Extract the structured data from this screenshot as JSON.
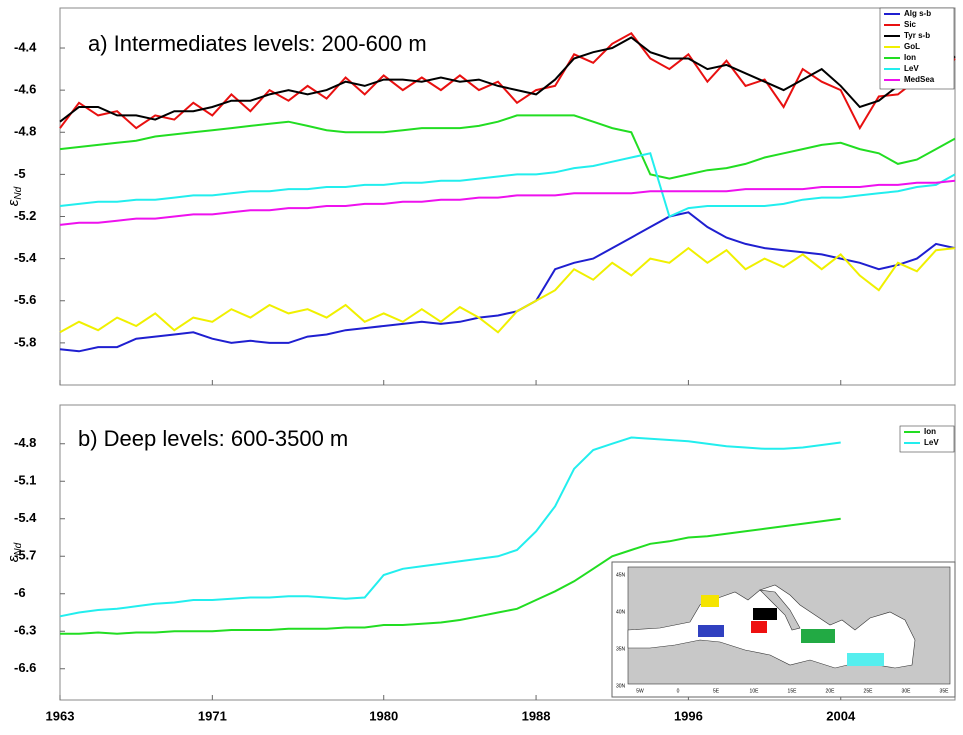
{
  "chart_data": [
    {
      "type": "line",
      "title": "a) Intermediates levels: 200-600 m",
      "ylabel": "ε",
      "ylabel_sub": "Nd",
      "x": [
        1963,
        1964,
        1965,
        1966,
        1967,
        1968,
        1969,
        1970,
        1971,
        1972,
        1973,
        1974,
        1975,
        1976,
        1977,
        1978,
        1979,
        1980,
        1981,
        1982,
        1983,
        1984,
        1985,
        1986,
        1987,
        1988,
        1989,
        1990,
        1991,
        1992,
        1993,
        1994,
        1995,
        1996,
        1997,
        1998,
        1999,
        2000,
        2001,
        2002,
        2003,
        2004,
        2005,
        2006,
        2007,
        2008,
        2009,
        2010
      ],
      "xlim": [
        1963,
        2010
      ],
      "ylim": [
        -6.0,
        -4.21
      ],
      "yticks": [
        -5.8,
        -5.6,
        -5.4,
        -5.2,
        -5,
        -4.8,
        -4.6,
        -4.4
      ],
      "legend": "upper right",
      "series": [
        {
          "name": "Alg s-b",
          "color": "#1f1fd0",
          "values": [
            -5.83,
            -5.84,
            -5.82,
            -5.82,
            -5.78,
            -5.77,
            -5.76,
            -5.75,
            -5.78,
            -5.8,
            -5.79,
            -5.8,
            -5.8,
            -5.77,
            -5.76,
            -5.74,
            -5.73,
            -5.72,
            -5.71,
            -5.7,
            -5.71,
            -5.7,
            -5.68,
            -5.67,
            -5.65,
            -5.6,
            -5.45,
            -5.42,
            -5.4,
            -5.35,
            -5.3,
            -5.25,
            -5.2,
            -5.18,
            -5.25,
            -5.3,
            -5.33,
            -5.35,
            -5.36,
            -5.37,
            -5.38,
            -5.4,
            -5.42,
            -5.45,
            -5.43,
            -5.4,
            -5.33,
            -5.35
          ]
        },
        {
          "name": "Sic",
          "color": "#e81010",
          "values": [
            -4.78,
            -4.66,
            -4.72,
            -4.7,
            -4.78,
            -4.72,
            -4.74,
            -4.66,
            -4.72,
            -4.62,
            -4.7,
            -4.6,
            -4.65,
            -4.58,
            -4.64,
            -4.54,
            -4.62,
            -4.53,
            -4.6,
            -4.54,
            -4.6,
            -4.53,
            -4.6,
            -4.56,
            -4.66,
            -4.6,
            -4.58,
            -4.43,
            -4.47,
            -4.38,
            -4.33,
            -4.45,
            -4.5,
            -4.43,
            -4.56,
            -4.46,
            -4.58,
            -4.55,
            -4.68,
            -4.5,
            -4.56,
            -4.6,
            -4.78,
            -4.63,
            -4.62,
            -4.55,
            -4.56,
            -4.45
          ]
        },
        {
          "name": "Tyr s-b",
          "color": "#000000",
          "values": [
            -4.75,
            -4.68,
            -4.68,
            -4.72,
            -4.72,
            -4.74,
            -4.7,
            -4.7,
            -4.68,
            -4.65,
            -4.65,
            -4.62,
            -4.6,
            -4.62,
            -4.6,
            -4.56,
            -4.58,
            -4.55,
            -4.55,
            -4.56,
            -4.54,
            -4.56,
            -4.55,
            -4.58,
            -4.6,
            -4.62,
            -4.55,
            -4.45,
            -4.42,
            -4.4,
            -4.35,
            -4.42,
            -4.45,
            -4.45,
            -4.5,
            -4.48,
            -4.52,
            -4.56,
            -4.6,
            -4.55,
            -4.5,
            -4.58,
            -4.68,
            -4.65,
            -4.58,
            -4.55,
            -4.52,
            -4.44
          ]
        },
        {
          "name": "GoL",
          "color": "#f0f000",
          "values": [
            -5.75,
            -5.7,
            -5.74,
            -5.68,
            -5.72,
            -5.66,
            -5.74,
            -5.68,
            -5.7,
            -5.64,
            -5.68,
            -5.62,
            -5.66,
            -5.64,
            -5.68,
            -5.62,
            -5.7,
            -5.66,
            -5.7,
            -5.64,
            -5.7,
            -5.63,
            -5.68,
            -5.75,
            -5.65,
            -5.6,
            -5.55,
            -5.45,
            -5.5,
            -5.42,
            -5.48,
            -5.4,
            -5.42,
            -5.35,
            -5.42,
            -5.36,
            -5.45,
            -5.4,
            -5.44,
            -5.38,
            -5.45,
            -5.38,
            -5.48,
            -5.55,
            -5.42,
            -5.46,
            -5.36,
            -5.35
          ]
        },
        {
          "name": "Ion",
          "color": "#22dd22",
          "values": [
            -4.88,
            -4.87,
            -4.86,
            -4.85,
            -4.84,
            -4.82,
            -4.81,
            -4.8,
            -4.79,
            -4.78,
            -4.77,
            -4.76,
            -4.75,
            -4.77,
            -4.79,
            -4.8,
            -4.8,
            -4.8,
            -4.79,
            -4.78,
            -4.78,
            -4.78,
            -4.77,
            -4.75,
            -4.72,
            -4.72,
            -4.72,
            -4.72,
            -4.75,
            -4.78,
            -4.8,
            -5.0,
            -5.02,
            -5.0,
            -4.98,
            -4.97,
            -4.95,
            -4.92,
            -4.9,
            -4.88,
            -4.86,
            -4.85,
            -4.88,
            -4.9,
            -4.95,
            -4.93,
            -4.88,
            -4.83
          ]
        },
        {
          "name": "LeV",
          "color": "#22eeee",
          "values": [
            -5.15,
            -5.14,
            -5.13,
            -5.13,
            -5.12,
            -5.12,
            -5.11,
            -5.1,
            -5.1,
            -5.09,
            -5.08,
            -5.08,
            -5.07,
            -5.07,
            -5.06,
            -5.06,
            -5.05,
            -5.05,
            -5.04,
            -5.04,
            -5.03,
            -5.03,
            -5.02,
            -5.01,
            -5.0,
            -5.0,
            -4.99,
            -4.97,
            -4.96,
            -4.94,
            -4.92,
            -4.9,
            -5.2,
            -5.16,
            -5.15,
            -5.15,
            -5.15,
            -5.15,
            -5.14,
            -5.12,
            -5.11,
            -5.11,
            -5.1,
            -5.09,
            -5.08,
            -5.06,
            -5.05,
            -5.0
          ]
        },
        {
          "name": "MedSea",
          "color": "#ee11ee",
          "values": [
            -5.24,
            -5.23,
            -5.23,
            -5.22,
            -5.21,
            -5.21,
            -5.2,
            -5.19,
            -5.19,
            -5.18,
            -5.17,
            -5.17,
            -5.16,
            -5.16,
            -5.15,
            -5.15,
            -5.14,
            -5.14,
            -5.13,
            -5.13,
            -5.12,
            -5.12,
            -5.11,
            -5.11,
            -5.1,
            -5.1,
            -5.1,
            -5.09,
            -5.09,
            -5.09,
            -5.09,
            -5.08,
            -5.08,
            -5.08,
            -5.08,
            -5.08,
            -5.07,
            -5.07,
            -5.07,
            -5.07,
            -5.06,
            -5.06,
            -5.06,
            -5.05,
            -5.05,
            -5.04,
            -5.04,
            -5.03
          ]
        }
      ]
    },
    {
      "type": "line",
      "title": "b) Deep levels: 600-3500 m",
      "ylabel": "ε",
      "ylabel_sub": "Nd",
      "x": [
        1963,
        1964,
        1965,
        1966,
        1967,
        1968,
        1969,
        1970,
        1971,
        1972,
        1973,
        1974,
        1975,
        1976,
        1977,
        1978,
        1979,
        1980,
        1981,
        1982,
        1983,
        1984,
        1985,
        1986,
        1987,
        1988,
        1989,
        1990,
        1991,
        1992,
        1993,
        1994,
        1995,
        1996,
        1997,
        1998,
        1999,
        2000,
        2001,
        2002,
        2003,
        2004
      ],
      "xlim": [
        1963,
        2010
      ],
      "ylim": [
        -6.85,
        -4.49
      ],
      "xticks": [
        1963,
        1971,
        1980,
        1988,
        1996,
        2004
      ],
      "yticks": [
        -6.6,
        -6.3,
        -6,
        -5.7,
        -5.4,
        -5.1,
        -4.8
      ],
      "legend": "upper right",
      "series": [
        {
          "name": "Ion",
          "color": "#22dd22",
          "values": [
            -6.32,
            -6.32,
            -6.31,
            -6.32,
            -6.31,
            -6.31,
            -6.3,
            -6.3,
            -6.3,
            -6.29,
            -6.29,
            -6.29,
            -6.28,
            -6.28,
            -6.28,
            -6.27,
            -6.27,
            -6.25,
            -6.25,
            -6.24,
            -6.23,
            -6.21,
            -6.18,
            -6.15,
            -6.12,
            -6.05,
            -5.98,
            -5.9,
            -5.8,
            -5.7,
            -5.65,
            -5.6,
            -5.58,
            -5.55,
            -5.54,
            -5.52,
            -5.5,
            -5.48,
            -5.46,
            -5.44,
            -5.42,
            -5.4
          ]
        },
        {
          "name": "LeV",
          "color": "#22eeee",
          "values": [
            -6.18,
            -6.15,
            -6.13,
            -6.12,
            -6.1,
            -6.08,
            -6.07,
            -6.05,
            -6.05,
            -6.04,
            -6.03,
            -6.03,
            -6.02,
            -6.02,
            -6.03,
            -6.04,
            -6.03,
            -5.85,
            -5.8,
            -5.78,
            -5.76,
            -5.74,
            -5.72,
            -5.7,
            -5.65,
            -5.5,
            -5.3,
            -5.0,
            -4.85,
            -4.8,
            -4.75,
            -4.76,
            -4.77,
            -4.78,
            -4.8,
            -4.82,
            -4.83,
            -4.84,
            -4.84,
            -4.83,
            -4.81,
            -4.79
          ]
        }
      ]
    }
  ],
  "inset_map": {
    "lat_labels": [
      "45N",
      "40N",
      "35N",
      "30N"
    ],
    "lon_labels": [
      "5W",
      "0",
      "5E",
      "10E",
      "15E",
      "20E",
      "25E",
      "30E",
      "35E"
    ]
  }
}
